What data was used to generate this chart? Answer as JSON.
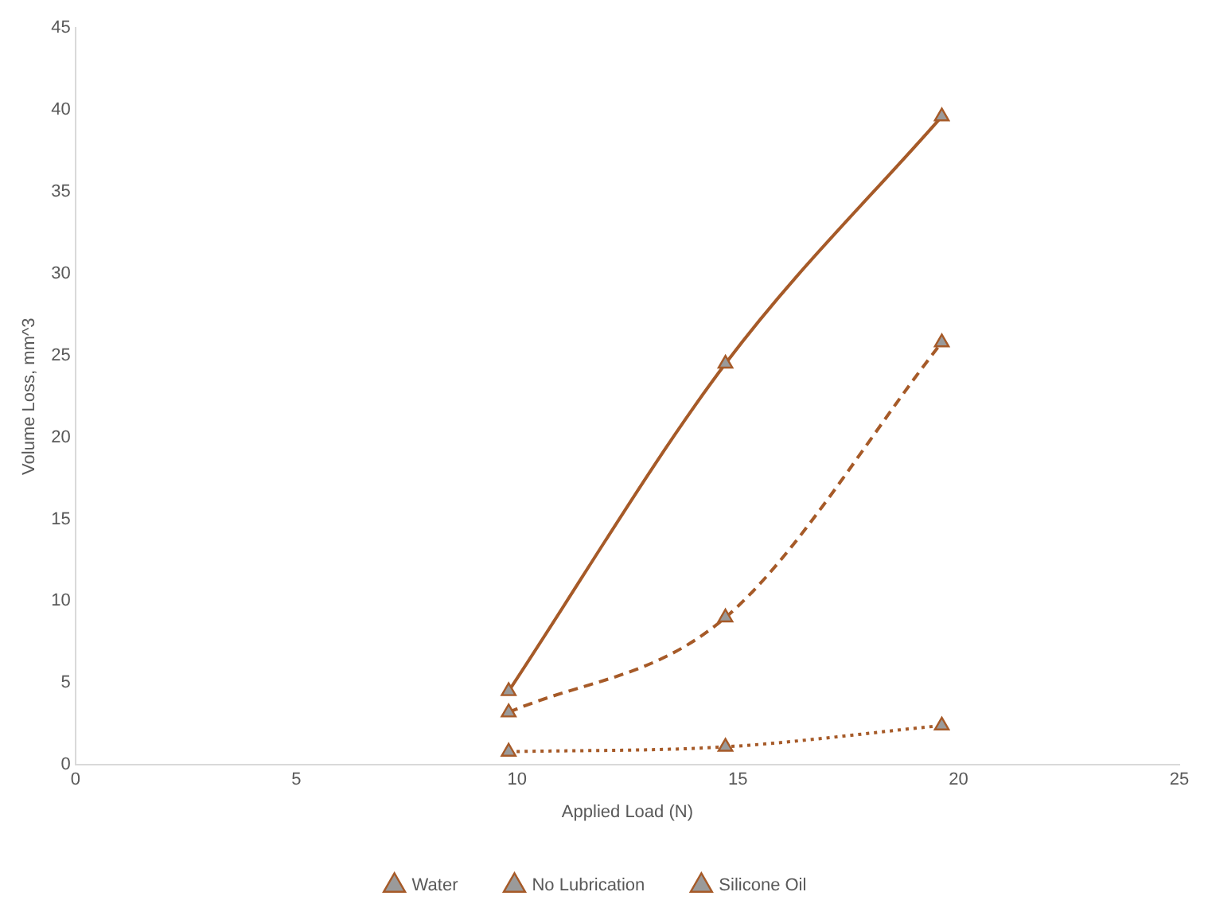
{
  "chart_data": {
    "type": "line",
    "xlabel": "Applied Load (N)",
    "ylabel": "Volume Loss, mm^3",
    "x": [
      9.81,
      14.72,
      19.62
    ],
    "series": [
      {
        "name": "Water",
        "color": "#a65a28",
        "values": [
          3.2,
          9.0,
          25.8
        ],
        "line_style": "dashed"
      },
      {
        "name": "No Lubrication",
        "color": "#a65a28",
        "values": [
          4.5,
          24.5,
          39.6
        ],
        "line_style": "solid"
      },
      {
        "name": "Silicone Oil",
        "color": "#a65a28",
        "values": [
          0.8,
          1.1,
          2.4
        ],
        "line_style": "dotted"
      }
    ],
    "xlim": [
      0,
      25
    ],
    "xticks": [
      0,
      5,
      10,
      15,
      20,
      25
    ],
    "ylim": [
      0,
      45
    ],
    "yticks": [
      0,
      5,
      10,
      15,
      20,
      25,
      30,
      35,
      40,
      45
    ],
    "grid": false,
    "legend": "bottom",
    "marker": "triangle"
  }
}
